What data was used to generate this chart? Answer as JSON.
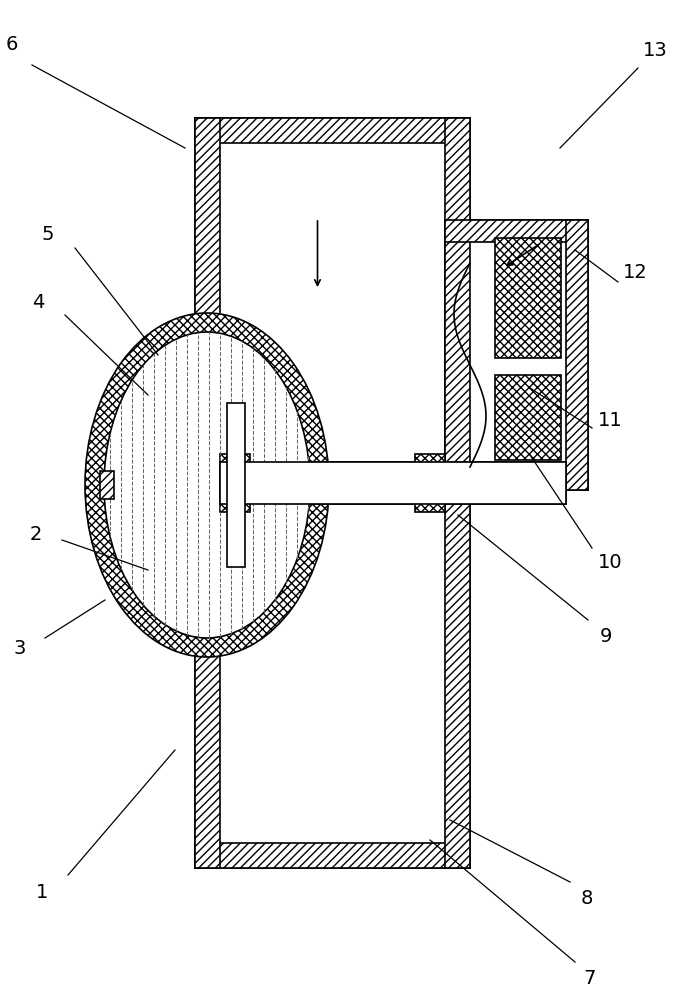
{
  "bg_color": "#ffffff",
  "line_color": "#000000",
  "lw": 1.2,
  "hatch_diag": "////",
  "hatch_cross": "xxxx",
  "label_fontsize": 14,
  "labels_data": [
    [
      "1",
      175,
      750,
      68,
      875,
      42,
      892
    ],
    [
      "2",
      148,
      570,
      62,
      540,
      36,
      535
    ],
    [
      "3",
      105,
      600,
      45,
      638,
      20,
      648
    ],
    [
      "4",
      148,
      395,
      65,
      315,
      38,
      302
    ],
    [
      "5",
      158,
      355,
      75,
      248,
      48,
      234
    ],
    [
      "6",
      185,
      148,
      32,
      65,
      12,
      45
    ],
    [
      "7",
      430,
      840,
      575,
      962,
      590,
      978
    ],
    [
      "8",
      450,
      820,
      570,
      882,
      587,
      898
    ],
    [
      "9",
      458,
      515,
      588,
      620,
      606,
      636
    ],
    [
      "10",
      530,
      455,
      592,
      548,
      610,
      562
    ],
    [
      "11",
      530,
      388,
      592,
      428,
      610,
      420
    ],
    [
      "12",
      575,
      250,
      618,
      282,
      635,
      272
    ],
    [
      "13",
      560,
      148,
      638,
      68,
      655,
      50
    ]
  ]
}
